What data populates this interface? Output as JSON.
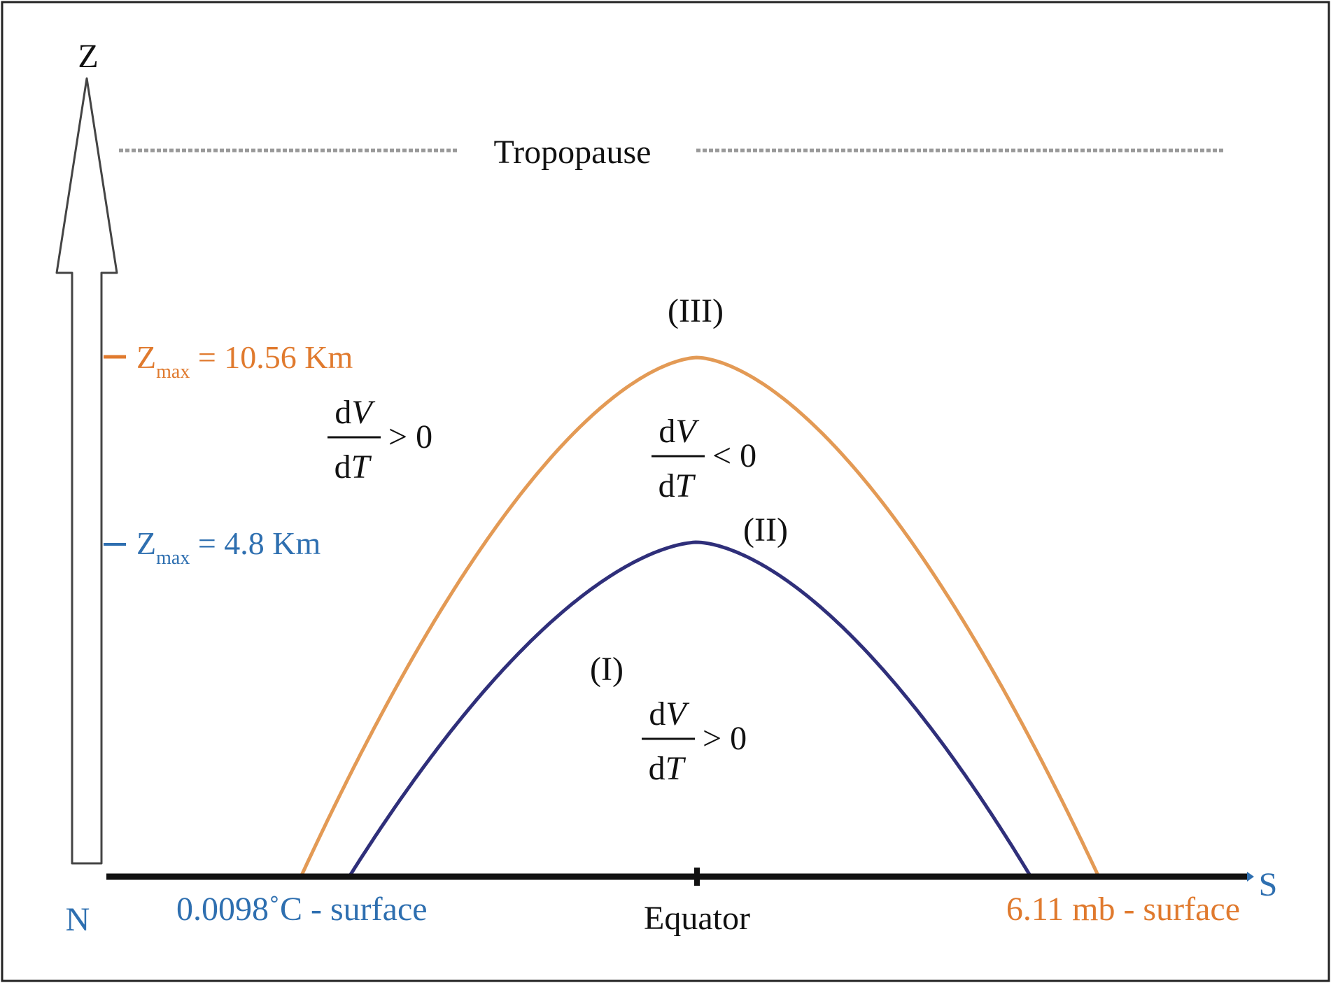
{
  "axis": {
    "vertical_label": "Z",
    "left_label": "N",
    "right_label": "S",
    "left_surface_label": "0.0098˚C - surface",
    "center_label": "Equator",
    "right_surface_label": "6.11 mb - surface"
  },
  "tropopause": {
    "label": "Tropopause"
  },
  "levels": [
    {
      "symbol": "Z",
      "subscript": "max",
      "text": " = 10.56 Km",
      "color": "#e07a2e"
    },
    {
      "symbol": "Z",
      "subscript": "max",
      "text": " = 4.8 Km",
      "color": "#2e6fb0"
    }
  ],
  "curves": {
    "outer_color": "#e39a55",
    "inner_color": "#2f2f7a"
  },
  "regions": [
    {
      "label": "(III)"
    },
    {
      "label": "(II)"
    },
    {
      "label": "(I)"
    }
  ],
  "fractions": [
    {
      "numerator_d": "d",
      "numerator_v": "V",
      "denominator_d": "d",
      "denominator_t": "T",
      "relation": "> 0"
    },
    {
      "numerator_d": "d",
      "numerator_v": "V",
      "denominator_d": "d",
      "denominator_t": "T",
      "relation": "< 0"
    },
    {
      "numerator_d": "d",
      "numerator_v": "V",
      "denominator_d": "d",
      "denominator_t": "T",
      "relation": "> 0"
    }
  ]
}
